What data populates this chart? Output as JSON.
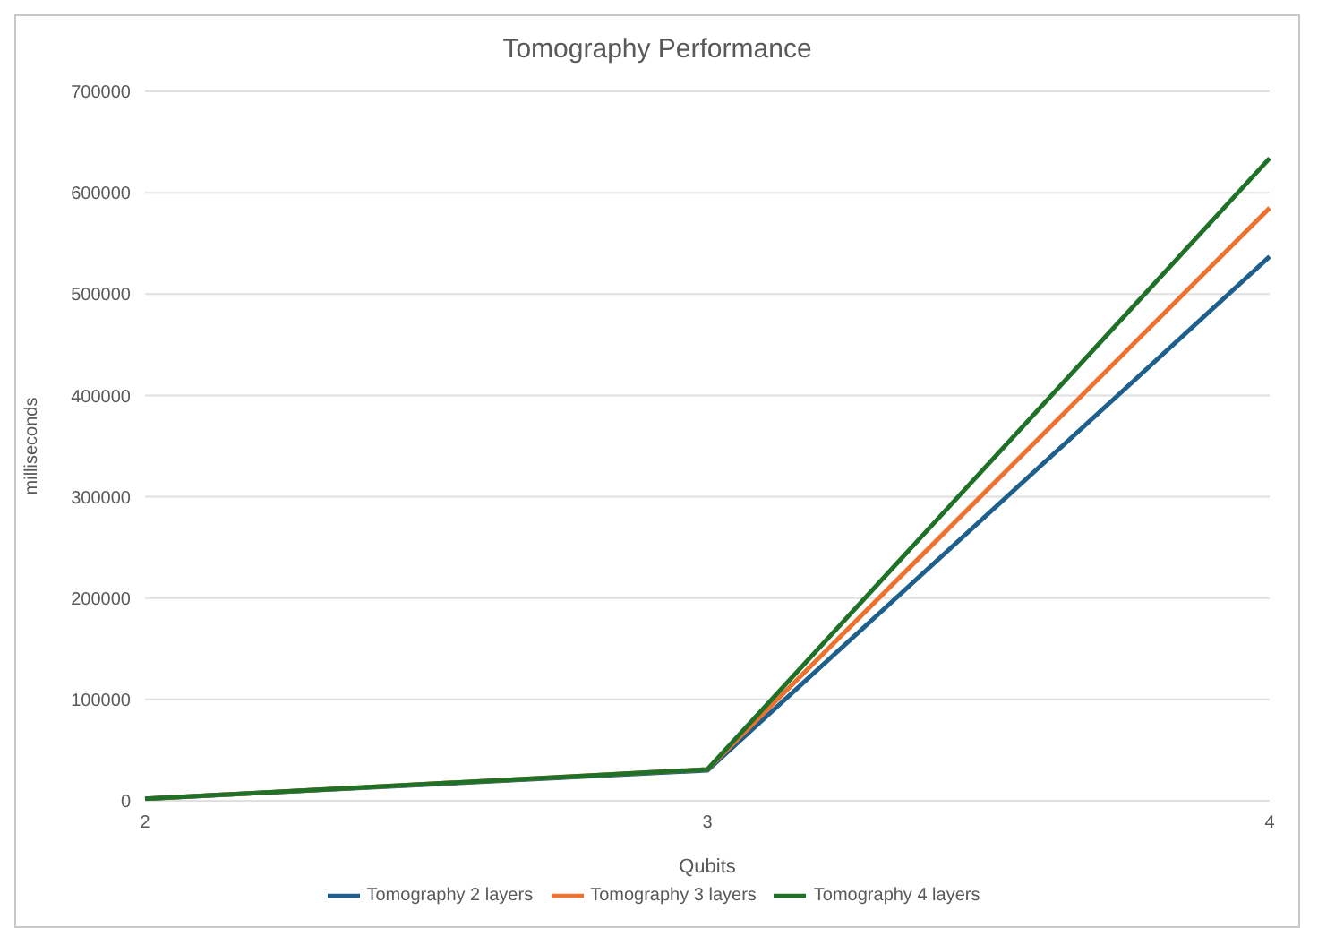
{
  "chart_data": {
    "type": "line",
    "title": "Tomography Performance",
    "xlabel": "Qubits",
    "ylabel": "milliseconds",
    "categories": [
      "2",
      "3",
      "4"
    ],
    "series": [
      {
        "name": "Tomography 2 layers",
        "color": "#1f5f8b",
        "values": [
          2000,
          30000,
          537000
        ]
      },
      {
        "name": "Tomography 3 layers",
        "color": "#ed7230",
        "values": [
          2000,
          31000,
          585000
        ]
      },
      {
        "name": "Tomography 4 layers",
        "color": "#1e7127",
        "values": [
          2000,
          31000,
          634000
        ]
      }
    ],
    "ylim": [
      0,
      700000
    ],
    "yticks": [
      0,
      100000,
      200000,
      300000,
      400000,
      500000,
      600000,
      700000
    ],
    "grid": "y",
    "legend": "bottom",
    "marker": "none",
    "line_style": "solid"
  }
}
